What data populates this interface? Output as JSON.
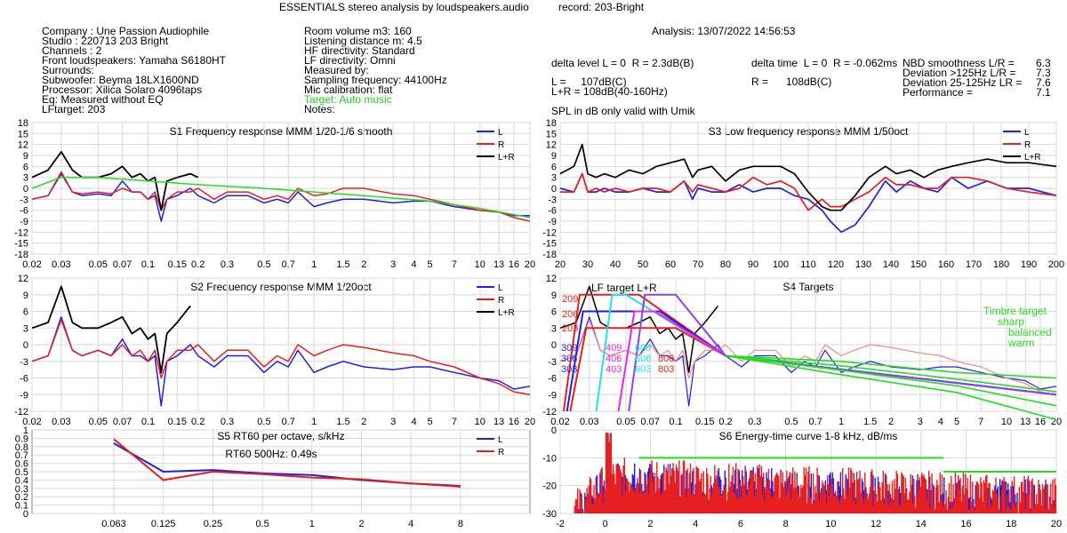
{
  "header": {
    "title": "ESSENTIALS stereo analysis by loudspeakers.audio",
    "record": "record: 203-Bright",
    "analysis": "Analysis: 13/07/2022 14:56:53"
  },
  "info_left": [
    "Company : Une Passion Audiophile",
    "Studio : 220713 203 Bright",
    "Channels : 2",
    "Front loudspeakers: Yamaha S6180HT",
    "Surrounds:",
    "Subwoofer: Beyma 18LX1600ND",
    "Processor: Xilica Solaro 4096taps",
    "Eq: Measured without EQ",
    "LFtarget: 203"
  ],
  "info_mid": [
    "Room volume m3: 160",
    "Listening distance m: 4.5",
    "HF directivity: Standard",
    "LF directivity: Omni",
    "Measured by:",
    "Sampling frequency: 44100Hz",
    "Mic calibration: flat"
  ],
  "info_mid_target": "Target: Auto music",
  "info_mid_notes": "Notes:",
  "metrics": {
    "delta_level": "delta level L = 0  R = 2.3dB(B)",
    "delta_time": "delta time  L = 0  R = -0.062ms",
    "spl_l": "L =     107dB(C)",
    "spl_lr": "L+R = 108dB(40-160Hz)",
    "spl_r": "R =      108dB(C)",
    "spl_note": "SPL in dB only valid with Umik",
    "nbd_label": "NBD smoothness L/R =",
    "nbd_value": "6.3",
    "dev125_label": "Deviation >125Hz L/R =",
    "dev125_value": "7.3",
    "dev25_label": "Deviation 25-125Hz LR =",
    "dev25_value": "7.6",
    "perf_label": "Performance =",
    "perf_value": "7.1"
  },
  "colors": {
    "L": "#1f1fe6",
    "R": "#e62020",
    "LR": "#000000",
    "target": "#22dd22",
    "pinkR": "#f08a8a",
    "lavenderL": "#9a90e8",
    "grid": "#d8d8d8"
  },
  "legend_labels": [
    "L",
    "R",
    "L+R"
  ],
  "chart_data": [
    {
      "id": "S1",
      "type": "line",
      "title": "S1  Frequency response MMM 1/20-1/6 smooth",
      "x_scale": "log",
      "xlim": [
        0.02,
        20
      ],
      "ylim": [
        -18,
        18
      ],
      "xunit": "kHz",
      "x_ticks": [
        "0.02",
        "0.03",
        "0.05",
        "0.07",
        "0.1",
        "0.15",
        "0.2",
        "0.3",
        "0.5",
        "0.7",
        "1",
        "1.5",
        "2",
        "3",
        "4",
        "5",
        "7",
        "10",
        "13",
        "16",
        "20"
      ],
      "y_ticks": [
        "18",
        "15",
        "12",
        "9",
        "6",
        "3",
        "0",
        "-3",
        "-6",
        "-9",
        "-12",
        "-15",
        "-18"
      ],
      "series": [
        {
          "name": "L",
          "x": [
            0.02,
            0.025,
            0.03,
            0.035,
            0.04,
            0.05,
            0.06,
            0.07,
            0.08,
            0.09,
            0.1,
            0.11,
            0.12,
            0.13,
            0.15,
            0.18,
            0.2,
            0.25,
            0.3,
            0.4,
            0.5,
            0.6,
            0.7,
            0.8,
            1,
            1.2,
            1.5,
            2,
            3,
            4,
            5,
            7,
            10,
            13,
            16,
            20
          ],
          "y": [
            -3,
            -2,
            4,
            -1,
            -2,
            -1.5,
            -2,
            2,
            -1,
            -1,
            -3,
            -2,
            -9,
            -3,
            -2,
            0,
            -2,
            -4,
            -2,
            -2,
            -4,
            -3,
            -4,
            -1,
            -5,
            -4,
            -3,
            -3,
            -4,
            -3.5,
            -3.5,
            -5,
            -6,
            -6.5,
            -7.5,
            -7.5
          ]
        },
        {
          "name": "R",
          "x": [
            0.02,
            0.025,
            0.03,
            0.035,
            0.04,
            0.05,
            0.06,
            0.07,
            0.08,
            0.09,
            0.1,
            0.11,
            0.12,
            0.13,
            0.15,
            0.18,
            0.2,
            0.25,
            0.3,
            0.4,
            0.5,
            0.6,
            0.7,
            0.8,
            1,
            1.2,
            1.5,
            2,
            3,
            4,
            5,
            7,
            10,
            13,
            16,
            20
          ],
          "y": [
            -3,
            -2,
            4.5,
            -1,
            -1.5,
            -1,
            -1.5,
            0,
            -1,
            -1,
            -3,
            -1,
            -6,
            -3,
            -1,
            -1,
            0,
            -3,
            -1,
            -1,
            -3,
            -2,
            -3,
            0,
            -2,
            -1.5,
            0,
            0,
            -1.5,
            -2,
            -3,
            -4.5,
            -6,
            -6.5,
            -8,
            -9
          ]
        },
        {
          "name": "L+R",
          "x": [
            0.02,
            0.025,
            0.03,
            0.035,
            0.04,
            0.05,
            0.06,
            0.07,
            0.08,
            0.09,
            0.1,
            0.11,
            0.12,
            0.13,
            0.15,
            0.18,
            0.2
          ],
          "y": [
            3,
            5,
            10,
            5,
            3,
            3,
            4,
            6,
            3,
            4,
            2,
            3,
            -6,
            2,
            3,
            4,
            3
          ]
        },
        {
          "name": "Target",
          "x": [
            0.02,
            0.03,
            0.05,
            0.1,
            0.2,
            0.5,
            1,
            2,
            5,
            10,
            20
          ],
          "y": [
            0,
            3,
            3,
            2,
            1,
            0,
            -1,
            -2,
            -3.5,
            -5.5,
            -8
          ]
        }
      ]
    },
    {
      "id": "S3",
      "type": "line",
      "title": "S3  Low frequency response MMM 1/50oct",
      "x_scale": "linear",
      "xlim": [
        20,
        200
      ],
      "ylim": [
        -18,
        18
      ],
      "xunit": "Hz",
      "x_ticks": [
        "20",
        "30",
        "40",
        "50",
        "60",
        "70",
        "80",
        "90",
        "100",
        "110",
        "120",
        "130",
        "140",
        "150",
        "160",
        "170",
        "180",
        "190",
        "200"
      ],
      "y_ticks": [
        "18",
        "15",
        "12",
        "9",
        "6",
        "3",
        "0",
        "-3",
        "-6",
        "-9",
        "-12",
        "-15",
        "-18"
      ],
      "series": [
        {
          "name": "L",
          "x": [
            20,
            25,
            28,
            30,
            33,
            36,
            40,
            45,
            50,
            55,
            60,
            65,
            68,
            70,
            75,
            80,
            85,
            90,
            95,
            100,
            105,
            110,
            115,
            118,
            122,
            127,
            132,
            138,
            142,
            147,
            152,
            157,
            162,
            168,
            175,
            182,
            190,
            200
          ],
          "y": [
            0,
            -1,
            4,
            -1,
            -1,
            0,
            -1,
            -1,
            0,
            -1,
            -1,
            2,
            -3,
            0,
            -1,
            -1,
            1,
            -1,
            0,
            0,
            -2,
            -3,
            -6,
            -9,
            -12,
            -10,
            -5,
            2,
            -1,
            2,
            0,
            -1,
            3,
            0,
            2,
            0,
            0,
            -2
          ]
        },
        {
          "name": "R",
          "x": [
            20,
            25,
            28,
            30,
            33,
            36,
            40,
            45,
            50,
            55,
            60,
            65,
            68,
            70,
            75,
            80,
            85,
            90,
            95,
            100,
            105,
            110,
            115,
            118,
            122,
            127,
            132,
            138,
            142,
            147,
            152,
            157,
            162,
            168,
            175,
            182,
            190,
            200
          ],
          "y": [
            -1,
            -1,
            4,
            -1,
            0,
            -1,
            0,
            -1,
            0,
            0,
            -1,
            2,
            -1,
            1,
            0,
            -1,
            0,
            3,
            1,
            2,
            0,
            -6,
            -3,
            -5,
            -5,
            -3,
            -1,
            3,
            1,
            1,
            0,
            0,
            3,
            3,
            2,
            0,
            -1,
            -2
          ]
        },
        {
          "name": "L+R",
          "x": [
            20,
            25,
            28,
            30,
            33,
            36,
            40,
            45,
            50,
            55,
            60,
            65,
            68,
            70,
            75,
            80,
            85,
            90,
            95,
            100,
            105,
            110,
            115,
            118,
            122,
            127,
            132,
            138,
            142,
            147,
            152,
            157,
            162,
            168,
            175,
            182,
            190,
            200
          ],
          "y": [
            4,
            6,
            12,
            4,
            3,
            4,
            3,
            5,
            4,
            6,
            7,
            8,
            3,
            5,
            6,
            2,
            5,
            6,
            6,
            6,
            4,
            -1,
            -5,
            -6,
            -6,
            -2,
            3,
            6,
            4,
            5,
            3,
            5,
            6,
            7,
            8,
            7,
            7,
            6
          ]
        }
      ]
    },
    {
      "id": "S2",
      "type": "line",
      "title": "S2  Frequency response MMM 1/20oct",
      "x_scale": "log",
      "xlim": [
        0.02,
        20
      ],
      "ylim": [
        -12,
        12
      ],
      "xunit": "kHz",
      "x_ticks": [
        "0.02",
        "0.03",
        "0.05",
        "0.07",
        "0.1",
        "0.15",
        "0.2",
        "0.3",
        "0.5",
        "0.7",
        "1",
        "1.5",
        "2",
        "3",
        "4",
        "5",
        "7",
        "10",
        "13",
        "16",
        "20"
      ],
      "y_ticks": [
        "12",
        "9",
        "6",
        "3",
        "0",
        "-3",
        "-6",
        "-9",
        "-12"
      ],
      "series": [
        {
          "name": "L",
          "x": [
            0.02,
            0.025,
            0.03,
            0.035,
            0.04,
            0.05,
            0.06,
            0.07,
            0.08,
            0.09,
            0.1,
            0.11,
            0.12,
            0.13,
            0.15,
            0.18,
            0.2,
            0.25,
            0.3,
            0.4,
            0.5,
            0.6,
            0.7,
            0.8,
            1,
            1.2,
            1.5,
            2,
            3,
            4,
            5,
            7,
            10,
            13,
            16,
            20
          ],
          "y": [
            -3,
            -2,
            5,
            -1,
            -2,
            -1,
            -2,
            1,
            -2,
            -2,
            -3,
            -2,
            -11,
            -3,
            -2,
            0,
            -2,
            -4,
            -2,
            -2,
            -5,
            -3,
            -4,
            -1,
            -5,
            -4,
            -3,
            -4,
            -4.5,
            -4,
            -4,
            -5,
            -6,
            -6.5,
            -8,
            -7.5
          ]
        },
        {
          "name": "R",
          "x": [
            0.02,
            0.025,
            0.03,
            0.035,
            0.04,
            0.05,
            0.06,
            0.07,
            0.08,
            0.09,
            0.1,
            0.11,
            0.12,
            0.13,
            0.15,
            0.18,
            0.2,
            0.25,
            0.3,
            0.4,
            0.5,
            0.6,
            0.7,
            0.8,
            1,
            1.2,
            1.5,
            2,
            3,
            4,
            5,
            7,
            10,
            13,
            16,
            20
          ],
          "y": [
            -3,
            -2,
            4.5,
            -1,
            -2,
            -1,
            -2,
            0,
            -2,
            -1,
            -3,
            -1,
            -6,
            -3,
            -1,
            -1,
            0,
            -3,
            -1,
            -1,
            -4,
            -2,
            -3,
            0,
            -2,
            -1,
            0,
            -0.5,
            -1.5,
            -2,
            -3,
            -4,
            -6,
            -7,
            -8.5,
            -9
          ]
        },
        {
          "name": "L+R",
          "x": [
            0.02,
            0.025,
            0.03,
            0.035,
            0.04,
            0.05,
            0.06,
            0.07,
            0.08,
            0.09,
            0.1,
            0.11,
            0.12,
            0.13,
            0.15,
            0.18
          ],
          "y": [
            3,
            4,
            10.5,
            4,
            3,
            3,
            4,
            5,
            2,
            3,
            1,
            2,
            -5,
            2,
            4,
            7
          ]
        }
      ]
    },
    {
      "id": "S4",
      "type": "line",
      "title": "S4  Targets",
      "x_scale": "log",
      "xlim": [
        0.02,
        20
      ],
      "ylim": [
        -12,
        12
      ],
      "xunit": "kHz",
      "x_ticks": [
        "0.02",
        "0.03",
        "0.05",
        "0.07",
        "0.1",
        "0.15",
        "0.2",
        "0.3",
        "0.5",
        "0.7",
        "1",
        "1.5",
        "2",
        "3",
        "4",
        "5",
        "7",
        "10",
        "13",
        "16",
        "20"
      ],
      "y_ticks": [
        "12",
        "9",
        "6",
        "3",
        "0",
        "-3",
        "-6",
        "-9",
        "-12"
      ],
      "annotations": {
        "lf_target": "LF target L+R",
        "timbre": [
          "Timbre target",
          "sharp",
          "balanced",
          "warm"
        ],
        "target_codes": [
          "209",
          "206",
          "203",
          "309",
          "306",
          "303",
          "409",
          "406",
          "403",
          "609",
          "606",
          "603",
          "806",
          "803"
        ]
      }
    },
    {
      "id": "S5",
      "type": "line",
      "title": "S5  RT60 per octave, s/kHz",
      "annotation": "RT60 500Hz: 0.49s",
      "categories": [
        "0.063",
        "0.125",
        "0.25",
        "0.5",
        "1",
        "2",
        "4",
        "8"
      ],
      "ylim": [
        0,
        1
      ],
      "y_ticks": [
        "1",
        "0.9",
        "0.8",
        "0.7",
        "0.6",
        "0.5",
        "0.4",
        "0.3",
        "0.2",
        "0.1",
        "0"
      ],
      "series": [
        {
          "name": "L",
          "values": [
            0.84,
            0.5,
            0.52,
            0.48,
            0.46,
            0.4,
            0.36,
            0.33
          ]
        },
        {
          "name": "R",
          "values": [
            0.89,
            0.4,
            0.5,
            0.47,
            0.43,
            0.41,
            0.36,
            0.32
          ]
        }
      ]
    },
    {
      "id": "S6",
      "type": "bar",
      "title": "S6  Energy-time curve 1-8 kHz, dB/ms",
      "xlim": [
        -2,
        20
      ],
      "ylim": [
        -30,
        0
      ],
      "x_ticks": [
        "-2",
        "0",
        "2",
        "4",
        "6",
        "8",
        "10",
        "12",
        "14",
        "16",
        "18",
        "20"
      ],
      "y_ticks": [
        "0",
        "-10",
        "-20",
        "-30"
      ],
      "thresholds": [
        {
          "x": [
            1.5,
            15
          ],
          "y": -10
        },
        {
          "x": [
            15,
            20
          ],
          "y": -15
        }
      ]
    }
  ]
}
